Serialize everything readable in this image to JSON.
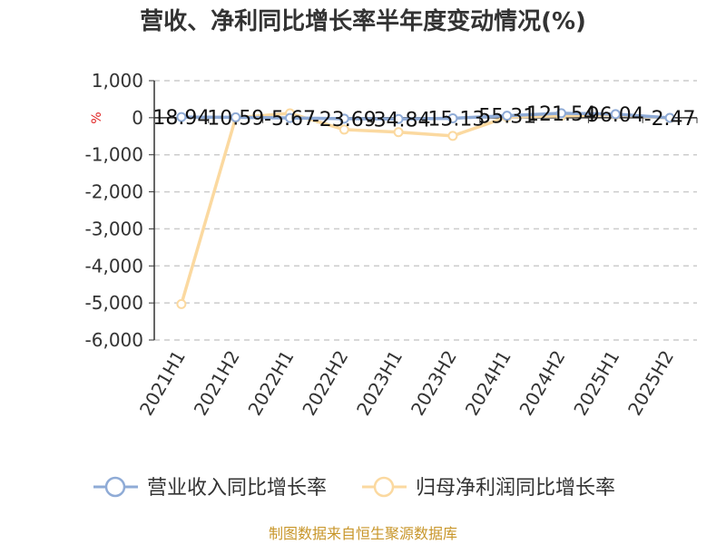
{
  "chart_data": {
    "type": "line",
    "title": "营收、净利同比增长率半年度变动情况(%)",
    "y_unit": "%",
    "categories": [
      "2021H1",
      "2021H2",
      "2022H1",
      "2022H2",
      "2023H1",
      "2023H2",
      "2024H1",
      "2024H2",
      "2025H1",
      "2025H2"
    ],
    "series": [
      {
        "name": "营业收入同比增长率",
        "color": "#8fabd6",
        "values": [
          18.94,
          10.59,
          -5.67,
          -23.69,
          -34.84,
          -15.13,
          55.31,
          121.54,
          96.04,
          -2.47
        ],
        "labels": [
          "18.94",
          "10.59",
          "-5.67",
          "-23.69",
          "-34.84",
          "-15.13",
          "55.31",
          "121.54",
          "96.04",
          "-2.47"
        ]
      },
      {
        "name": "归母净利润同比增长率",
        "color": "#fbd9a0",
        "values": [
          -5030,
          0,
          120,
          -320,
          -390,
          -490,
          20,
          50,
          80,
          -10
        ]
      }
    ],
    "ylim": [
      -6000,
      1000
    ],
    "yticks": [
      "1,000",
      "0",
      "-1,000",
      "-2,000",
      "-3,000",
      "-4,000",
      "-5,000",
      "-6,000"
    ],
    "grid": true,
    "legend_position": "bottom"
  },
  "source": "制图数据来自恒生聚源数据库"
}
